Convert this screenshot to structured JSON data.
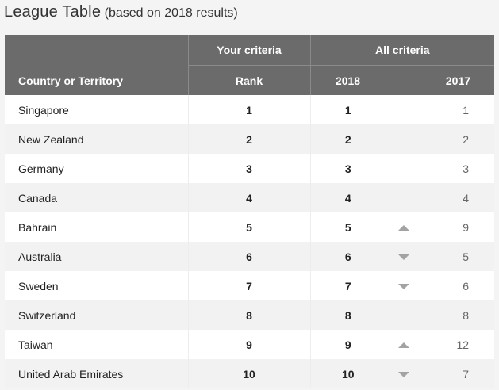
{
  "heading": {
    "title": "League Table",
    "subtitle": "(based on 2018 results)"
  },
  "table": {
    "headers": {
      "country": "Country or Territory",
      "your_criteria": "Your criteria",
      "rank": "Rank",
      "all_criteria": "All criteria",
      "year_2018": "2018",
      "year_2017": "2017"
    },
    "rows": [
      {
        "country": "Singapore",
        "rank": "1",
        "y2018": "1",
        "trend": "none",
        "y2017": "1"
      },
      {
        "country": "New Zealand",
        "rank": "2",
        "y2018": "2",
        "trend": "none",
        "y2017": "2"
      },
      {
        "country": "Germany",
        "rank": "3",
        "y2018": "3",
        "trend": "none",
        "y2017": "3"
      },
      {
        "country": "Canada",
        "rank": "4",
        "y2018": "4",
        "trend": "none",
        "y2017": "4"
      },
      {
        "country": "Bahrain",
        "rank": "5",
        "y2018": "5",
        "trend": "up",
        "y2017": "9"
      },
      {
        "country": "Australia",
        "rank": "6",
        "y2018": "6",
        "trend": "down",
        "y2017": "5"
      },
      {
        "country": "Sweden",
        "rank": "7",
        "y2018": "7",
        "trend": "down",
        "y2017": "6"
      },
      {
        "country": "Switzerland",
        "rank": "8",
        "y2018": "8",
        "trend": "none",
        "y2017": "8"
      },
      {
        "country": "Taiwan",
        "rank": "9",
        "y2018": "9",
        "trend": "up",
        "y2017": "12"
      },
      {
        "country": "United Arab Emirates",
        "rank": "10",
        "y2018": "10",
        "trend": "down",
        "y2017": "7"
      }
    ]
  },
  "colors": {
    "header_bg": "#6b6b6b",
    "header_text": "#ffffff",
    "row_odd": "#ffffff",
    "row_even": "#f2f2f2",
    "arrow": "#a3a3a3"
  }
}
